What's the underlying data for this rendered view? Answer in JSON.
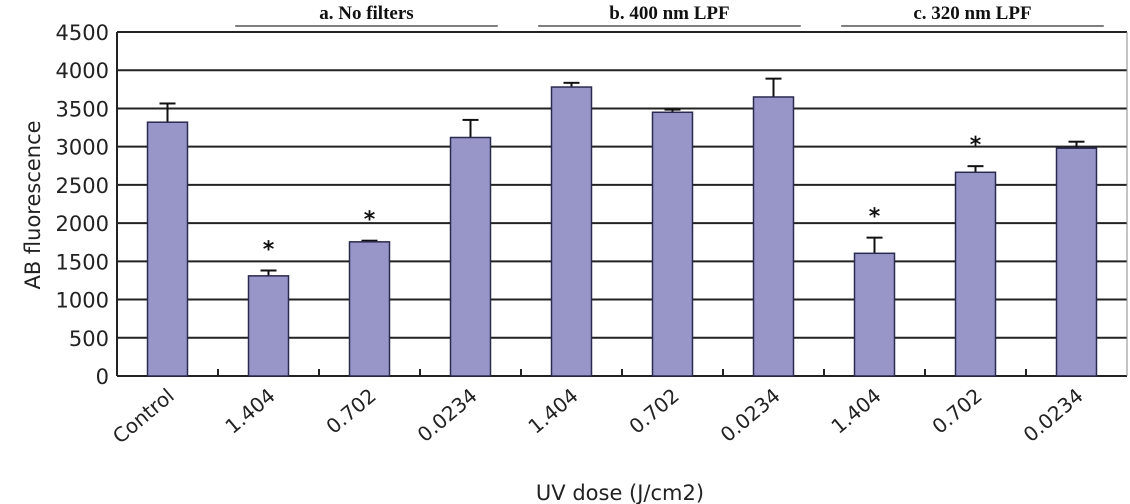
{
  "chart_data": {
    "type": "bar",
    "title": "",
    "xlabel": "UV dose (J/cm2)",
    "ylabel": "AB fluorescence",
    "ylim": [
      0,
      4500
    ],
    "yticks": [
      0,
      500,
      1000,
      1500,
      2000,
      2500,
      3000,
      3500,
      4000,
      4500
    ],
    "grid": true,
    "bar_color": "#9896c8",
    "categories": [
      "Control",
      "1.404",
      "0.702",
      "0.0234",
      "1.404",
      "0.702",
      "0.0234",
      "1.404",
      "0.702",
      "0.0234"
    ],
    "values": [
      3320,
      1310,
      1755,
      3120,
      3780,
      3450,
      3650,
      1605,
      2665,
      2980
    ],
    "error_upper": [
      3565,
      1380,
      1770,
      3350,
      3835,
      3485,
      3890,
      1810,
      2745,
      3065
    ],
    "significance": [
      "",
      "*",
      "*",
      "",
      "",
      "",
      "",
      "*",
      "*",
      ""
    ],
    "groups": [
      {
        "label": "a. No filters",
        "from": 1,
        "to": 3
      },
      {
        "label": "b. 400 nm LPF",
        "from": 4,
        "to": 6
      },
      {
        "label": "c. 320 nm LPF",
        "from": 7,
        "to": 9
      }
    ]
  }
}
